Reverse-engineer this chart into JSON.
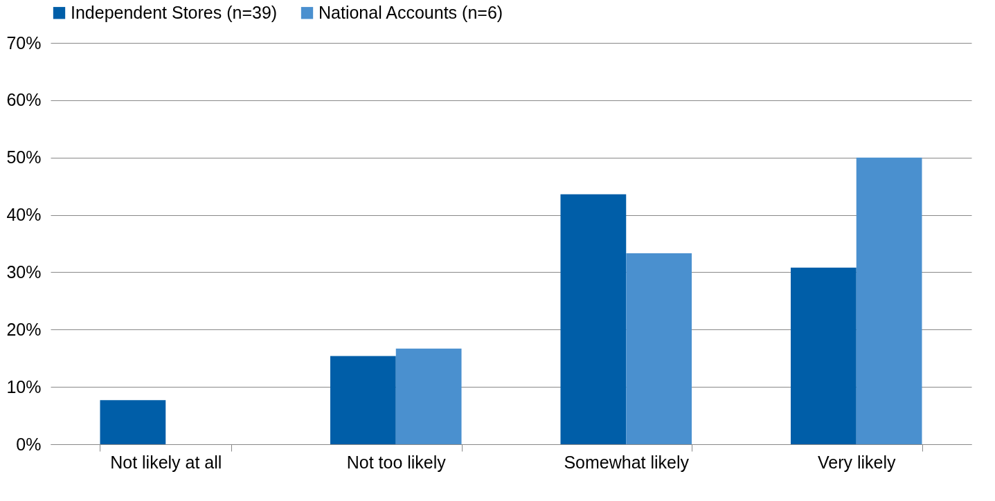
{
  "chart_data": {
    "type": "bar",
    "categories": [
      "Not likely at all",
      "Not too likely",
      "Somewhat likely",
      "Very likely"
    ],
    "series": [
      {
        "name": "Independent Stores (n=39)",
        "color": "#005ea8",
        "values": [
          7.7,
          15.4,
          43.6,
          30.8
        ]
      },
      {
        "name": "National Accounts (n=6)",
        "color": "#4a90cf",
        "values": [
          0,
          16.7,
          33.3,
          50
        ]
      }
    ],
    "ylim": [
      0,
      70
    ],
    "yticks": [
      {
        "value": 0,
        "label": "0%"
      },
      {
        "value": 10,
        "label": "10%"
      },
      {
        "value": 20,
        "label": "20%"
      },
      {
        "value": 30,
        "label": "30%"
      },
      {
        "value": 40,
        "label": "40%"
      },
      {
        "value": 50,
        "label": "50%"
      },
      {
        "value": 60,
        "label": "60%"
      },
      {
        "value": 70,
        "label": "70%"
      }
    ],
    "grid": "y",
    "legend": "top"
  }
}
